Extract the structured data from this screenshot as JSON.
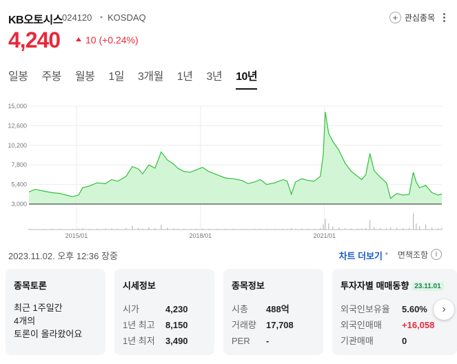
{
  "stock": {
    "name": "KB오토시스",
    "code": "024120",
    "separator": "•",
    "market": "KOSDAQ",
    "price": "4,240",
    "change": "10 (+0.24%)",
    "direction": "up",
    "up_color": "#e8293b"
  },
  "watch": {
    "label": "관심종목",
    "icon": "plus-circle-icon"
  },
  "tabs": [
    {
      "label": "일봉",
      "active": false
    },
    {
      "label": "주봉",
      "active": false
    },
    {
      "label": "월봉",
      "active": false
    },
    {
      "label": "1일",
      "active": false
    },
    {
      "label": "3개월",
      "active": false
    },
    {
      "label": "1년",
      "active": false
    },
    {
      "label": "3년",
      "active": false
    },
    {
      "label": "10년",
      "active": true
    }
  ],
  "chart_data": {
    "type": "area",
    "y_ticks": [
      "15,000",
      "12,600",
      "10,200",
      "7,800",
      "5,400",
      "3,000"
    ],
    "y_tick_values": [
      15000,
      12600,
      10200,
      7800,
      5400,
      3000
    ],
    "ylim": [
      3000,
      15000
    ],
    "x_ticks": [
      "2015/01",
      "2018/01",
      "2021/01"
    ],
    "x_tick_values": [
      2015.0,
      2018.0,
      2021.0
    ],
    "xlim": [
      2013.85,
      2023.84
    ],
    "line_color": "#2fbf3a",
    "fill_color": "#cdf5d0",
    "grid": true,
    "x": [
      2013.85,
      2014.0,
      2014.2,
      2014.4,
      2014.6,
      2014.75,
      2014.9,
      2015.05,
      2015.15,
      2015.3,
      2015.5,
      2015.7,
      2015.85,
      2016.0,
      2016.2,
      2016.35,
      2016.5,
      2016.6,
      2016.75,
      2016.9,
      2017.05,
      2017.2,
      2017.35,
      2017.45,
      2017.6,
      2017.75,
      2017.9,
      2018.05,
      2018.2,
      2018.4,
      2018.6,
      2018.8,
      2019.0,
      2019.15,
      2019.3,
      2019.45,
      2019.6,
      2019.8,
      2020.0,
      2020.1,
      2020.2,
      2020.3,
      2020.45,
      2020.6,
      2020.75,
      2020.9,
      2020.97,
      2021.02,
      2021.1,
      2021.2,
      2021.35,
      2021.5,
      2021.65,
      2021.8,
      2021.9,
      2022.0,
      2022.1,
      2022.2,
      2022.35,
      2022.5,
      2022.6,
      2022.75,
      2022.9,
      2023.05,
      2023.15,
      2023.22,
      2023.3,
      2023.45,
      2023.6,
      2023.75,
      2023.84
    ],
    "y": [
      4500,
      4800,
      4600,
      4400,
      4300,
      4100,
      3900,
      4100,
      5000,
      5200,
      5600,
      5500,
      6000,
      5800,
      6400,
      7600,
      7300,
      6700,
      7800,
      7400,
      9400,
      8400,
      7900,
      7400,
      7000,
      6900,
      7200,
      7500,
      7000,
      6600,
      6200,
      6100,
      5900,
      5500,
      5700,
      6000,
      5400,
      5600,
      6000,
      5800,
      4200,
      5700,
      6100,
      5900,
      5800,
      6400,
      9000,
      14300,
      11700,
      10700,
      9600,
      8000,
      7000,
      6400,
      6000,
      6600,
      9200,
      7100,
      6300,
      5600,
      3700,
      4300,
      4100,
      4200,
      6900,
      5700,
      5000,
      5300,
      4400,
      4100,
      4240
    ],
    "volume": [
      0.05,
      0.03,
      0.04,
      0.05,
      0.04,
      0.03,
      0.04,
      0.06,
      0.08,
      0.04,
      0.05,
      0.06,
      0.07,
      0.05,
      0.09,
      0.22,
      0.1,
      0.06,
      0.12,
      0.08,
      0.28,
      0.12,
      0.07,
      0.06,
      0.05,
      0.04,
      0.05,
      0.06,
      0.05,
      0.04,
      0.04,
      0.05,
      0.04,
      0.03,
      0.05,
      0.04,
      0.04,
      0.04,
      0.05,
      0.04,
      0.09,
      0.05,
      0.06,
      0.05,
      0.05,
      0.08,
      0.3,
      0.62,
      0.35,
      0.18,
      0.12,
      0.08,
      0.06,
      0.05,
      0.05,
      0.08,
      0.55,
      0.15,
      0.08,
      0.06,
      0.12,
      0.1,
      0.08,
      0.09,
      0.95,
      0.35,
      0.2,
      0.3,
      0.12,
      0.08,
      0.1
    ]
  },
  "meta": {
    "timestamp": "2023.11.02. 오후 12:36 장중",
    "chart_more": "차트 더보기",
    "separator": "•",
    "disclaimer": "면책조항",
    "info_icon": "i"
  },
  "cards": {
    "discussion": {
      "title": "종목토론",
      "line1": "최근 1주일간",
      "line2": "4개의",
      "line3": "토론이 올라왔어요"
    },
    "market_info": {
      "title": "시세정보",
      "rows": [
        {
          "k": "시가",
          "v": "4,230"
        },
        {
          "k": "1년 최고",
          "v": "8,150"
        },
        {
          "k": "1년 최저",
          "v": "3,490"
        }
      ]
    },
    "stock_info": {
      "title": "종목정보",
      "rows": [
        {
          "k": "시총",
          "v": "488억"
        },
        {
          "k": "거래량",
          "v": "17,708"
        },
        {
          "k": "PER",
          "v": "-"
        }
      ]
    },
    "investor": {
      "title": "투자자별 매매동향",
      "date": "23.11.01",
      "rows": [
        {
          "k": "외국인보유율",
          "v": "5.60%",
          "color": "#222222"
        },
        {
          "k": "외국인매매",
          "v": "+16,058",
          "color": "#e8293b"
        },
        {
          "k": "기관매매",
          "v": "0",
          "color": "#222222"
        }
      ]
    }
  }
}
